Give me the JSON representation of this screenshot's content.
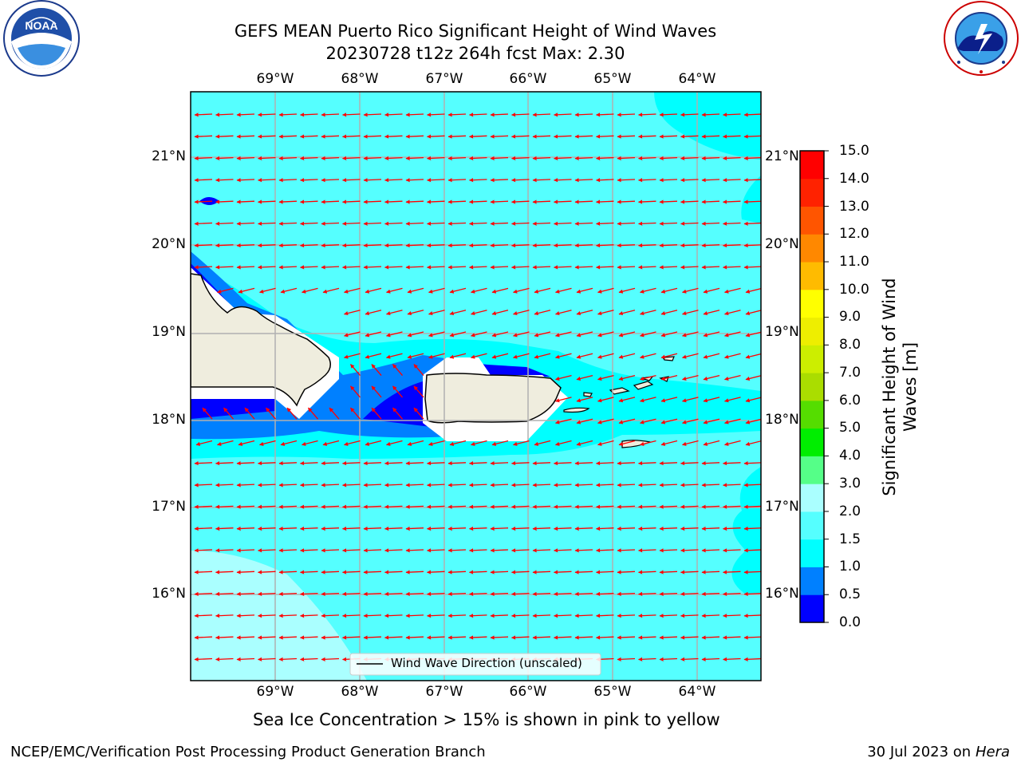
{
  "header": {
    "title": "GEFS MEAN Puerto Rico Significant Height of Wind Waves",
    "subtitle": "20230728 t12z 264h fcst   Max: 2.30"
  },
  "logos": {
    "left": {
      "name": "noaa-logo",
      "text": "NOAA"
    },
    "right": {
      "name": "nws-logo",
      "ring_text": "NATIONAL WEATHER SERVICE"
    }
  },
  "map": {
    "lon_ticks": [
      "69°W",
      "68°W",
      "67°W",
      "66°W",
      "65°W",
      "64°W"
    ],
    "lat_ticks_left": [
      "21°N",
      "20°N",
      "19°N",
      "18°N",
      "17°N",
      "16°N"
    ],
    "lat_ticks_right": [
      "21°N",
      "20°N",
      "19°N",
      "18°N",
      "17°N",
      "16°N"
    ],
    "lon_range": [
      -70.0,
      -63.25
    ],
    "lat_range": [
      15.0,
      21.75
    ],
    "gridlines": true,
    "legend": {
      "label": "Wind Wave Direction (unscaled)",
      "placement": "bottom-center"
    },
    "vector_color": "#ff0000",
    "land_color": "#efedde"
  },
  "colorbar": {
    "label_line1": "Significant Height of Wind",
    "label_line2": "Waves [m]",
    "tick_labels": [
      "15.0",
      "14.0",
      "13.0",
      "12.0",
      "11.0",
      "10.0",
      "9.0",
      "8.0",
      "7.0",
      "6.0",
      "5.0",
      "4.0",
      "3.0",
      "2.0",
      "1.5",
      "1.0",
      "0.5",
      "0.0"
    ],
    "levels": [
      0.0,
      0.5,
      1.0,
      1.5,
      2.0,
      3.0,
      4.0,
      5.0,
      6.0,
      7.0,
      8.0,
      9.0,
      10.0,
      11.0,
      12.0,
      13.0,
      14.0,
      15.0
    ],
    "colors": [
      "#0000ff",
      "#0080ff",
      "#00ffff",
      "#55ffff",
      "#aaffff",
      "#55ff88",
      "#00ee00",
      "#55dd00",
      "#aadd00",
      "#ccee00",
      "#eeee00",
      "#ffff00",
      "#ffbb00",
      "#ff8800",
      "#ff5500",
      "#ff2200",
      "#ff0000"
    ]
  },
  "notes": {
    "ice": "Sea Ice Concentration > 15% is shown in pink to yellow"
  },
  "footer": {
    "left": "NCEP/EMC/Verification Post Processing Product Generation Branch",
    "right_prefix": "30 Jul 2023 on ",
    "right_italic": "Hera"
  }
}
